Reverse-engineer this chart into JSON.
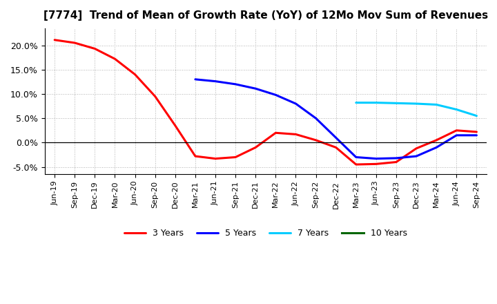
{
  "title": "[7774]  Trend of Mean of Growth Rate (YoY) of 12Mo Mov Sum of Revenues",
  "ylim": [
    -0.065,
    0.235
  ],
  "yticks": [
    -0.05,
    0.0,
    0.05,
    0.1,
    0.15,
    0.2
  ],
  "ytick_labels": [
    "-5.0%",
    "0.0%",
    "5.0%",
    "10.0%",
    "15.0%",
    "20.0%"
  ],
  "background_color": "#ffffff",
  "grid_color": "#b0b0b0",
  "x_tick_labels": [
    "Jun-19",
    "Sep-19",
    "Dec-19",
    "Mar-20",
    "Jun-20",
    "Sep-20",
    "Dec-20",
    "Mar-21",
    "Jun-21",
    "Sep-21",
    "Dec-21",
    "Mar-22",
    "Jun-22",
    "Sep-22",
    "Dec-22",
    "Mar-23",
    "Jun-23",
    "Sep-23",
    "Dec-23",
    "Mar-24",
    "Jun-24",
    "Sep-24"
  ],
  "series": {
    "3yr": {
      "color": "#ff0000",
      "label": "3 Years",
      "x": [
        0,
        1,
        2,
        3,
        4,
        5,
        6,
        7,
        8,
        9,
        10,
        11,
        12,
        13,
        14,
        15,
        16,
        17,
        18,
        19,
        20,
        21
      ],
      "y": [
        0.211,
        0.205,
        0.193,
        0.172,
        0.14,
        0.095,
        0.035,
        -0.028,
        -0.033,
        -0.03,
        -0.01,
        0.02,
        0.017,
        0.005,
        -0.01,
        -0.045,
        -0.044,
        -0.04,
        -0.012,
        0.005,
        0.025,
        0.022
      ]
    },
    "5yr": {
      "color": "#0000ff",
      "label": "5 Years",
      "x": [
        7,
        8,
        9,
        10,
        11,
        12,
        13,
        14,
        15,
        16,
        17,
        18,
        19,
        20,
        21
      ],
      "y": [
        0.13,
        0.126,
        0.12,
        0.111,
        0.098,
        0.08,
        0.05,
        0.01,
        -0.03,
        -0.033,
        -0.032,
        -0.028,
        -0.01,
        0.015,
        0.015
      ]
    },
    "7yr": {
      "color": "#00ccff",
      "label": "7 Years",
      "x": [
        15,
        16,
        17,
        18,
        19,
        20,
        21
      ],
      "y": [
        0.082,
        0.082,
        0.081,
        0.08,
        0.078,
        0.068,
        0.055
      ]
    },
    "10yr": {
      "color": "#006600",
      "label": "10 Years",
      "x": [],
      "y": []
    }
  }
}
